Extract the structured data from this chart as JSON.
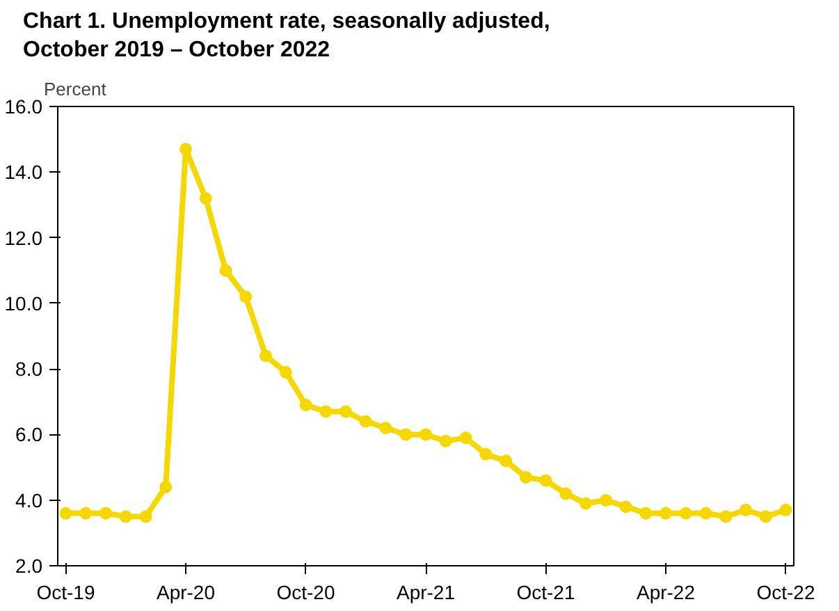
{
  "chart_data": {
    "type": "line",
    "title": "Chart 1. Unemployment rate, seasonally adjusted,\nOctober 2019 – October 2022",
    "ylabel": "Percent",
    "categories": [
      "Oct-19",
      null,
      null,
      null,
      null,
      null,
      "Apr-20",
      null,
      null,
      null,
      null,
      null,
      "Oct-20",
      null,
      null,
      null,
      null,
      null,
      "Apr-21",
      null,
      null,
      null,
      null,
      null,
      "Oct-21",
      null,
      null,
      null,
      null,
      null,
      "Apr-22",
      null,
      null,
      null,
      null,
      null,
      "Oct-22"
    ],
    "series": [
      {
        "color": "#f5d800",
        "values": [
          3.6,
          3.6,
          3.6,
          3.5,
          3.5,
          4.4,
          14.7,
          13.2,
          11.0,
          10.2,
          8.4,
          7.9,
          6.9,
          6.7,
          6.7,
          6.4,
          6.2,
          6.0,
          6.0,
          5.8,
          5.9,
          5.4,
          5.2,
          4.7,
          4.6,
          4.2,
          3.9,
          4.0,
          3.8,
          3.6,
          3.6,
          3.6,
          3.6,
          3.5,
          3.7,
          3.5,
          3.7
        ]
      }
    ],
    "ylim": [
      2,
      16
    ],
    "yticks": [
      {
        "value": 2,
        "label": "2.0"
      },
      {
        "value": 4,
        "label": "4.0"
      },
      {
        "value": 6,
        "label": "6.0"
      },
      {
        "value": 8,
        "label": "8.0"
      },
      {
        "value": 10,
        "label": "10.0"
      },
      {
        "value": 12,
        "label": "12.0"
      },
      {
        "value": 14,
        "label": "14.0"
      },
      {
        "value": 16,
        "label": "16.0"
      }
    ],
    "grid": false,
    "marker": "circle",
    "line_style": "solid"
  }
}
